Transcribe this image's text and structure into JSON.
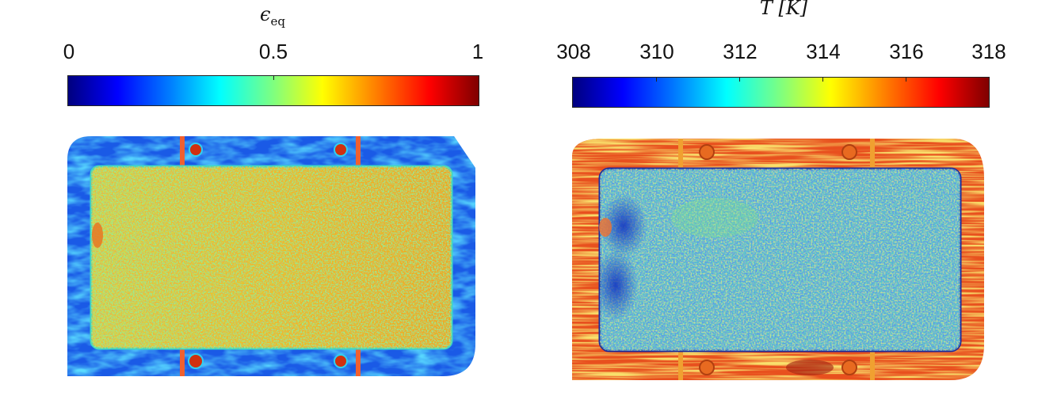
{
  "left_panel": {
    "colorbar_title_main": "ϵ",
    "colorbar_title_sub": "eq",
    "tick_labels": [
      "0",
      "0.5",
      "1"
    ],
    "colormap": "jet"
  },
  "right_panel": {
    "colorbar_title": "T [K]",
    "tick_labels": [
      "308",
      "310",
      "312",
      "314",
      "316",
      "318"
    ],
    "colormap": "jet"
  },
  "colors": {
    "jet_stops": [
      "#00007f",
      "#0000ff",
      "#007fff",
      "#00ffff",
      "#7fff7f",
      "#ffff00",
      "#ff7f00",
      "#ff0000",
      "#7f0000"
    ],
    "strain_interior": "#f0c020",
    "strain_frame": "#1a5ae6",
    "temp_interior": "#52c8d8",
    "temp_frame": "#e8501e"
  }
}
